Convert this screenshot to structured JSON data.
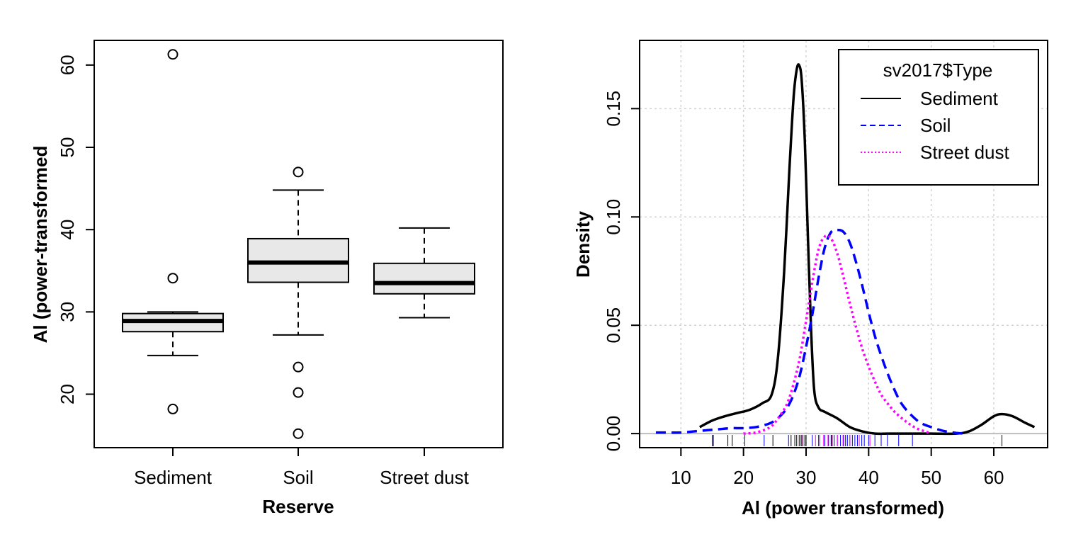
{
  "chart_data": [
    {
      "type": "boxplot",
      "xlabel": "Reserve",
      "ylabel": "Al (power-transformed",
      "ylim": [
        13.5,
        63
      ],
      "yticks": [
        20,
        30,
        40,
        50,
        60
      ],
      "categories": [
        "Sediment",
        "Soil",
        "Street dust"
      ],
      "boxes": [
        {
          "name": "Sediment",
          "whisker_low": 24.7,
          "q1": 27.6,
          "median": 28.9,
          "q3": 29.8,
          "whisker_high": 30.0,
          "outliers": [
            61.3,
            34.1,
            18.2
          ]
        },
        {
          "name": "Soil",
          "whisker_low": 27.2,
          "q1": 33.6,
          "median": 36.0,
          "q3": 38.9,
          "whisker_high": 44.8,
          "outliers": [
            47.0,
            23.3,
            20.2,
            15.2
          ]
        },
        {
          "name": "Street dust",
          "whisker_low": 29.3,
          "q1": 32.2,
          "median": 33.5,
          "q3": 35.9,
          "whisker_high": 40.2,
          "outliers": []
        }
      ],
      "box_fill": "#e8e8e8"
    },
    {
      "type": "line",
      "xlabel": "Al (power transformed)",
      "ylabel": "Density",
      "xlim": [
        3.4,
        68.6
      ],
      "ylim": [
        -0.0065,
        0.1815
      ],
      "xticks": [
        10,
        20,
        30,
        40,
        50,
        60
      ],
      "yticks": [
        "0.00",
        "0.05",
        "0.10",
        "0.15"
      ],
      "grid": true,
      "legend": {
        "title": "sv2017$Type",
        "position": "top-right"
      },
      "series": [
        {
          "name": "Sediment",
          "color": "#000000",
          "dash": "solid",
          "x": [
            13,
            15,
            17,
            19,
            21,
            23,
            24.5,
            25.5,
            26.5,
            27.3,
            28,
            28.5,
            28.9,
            29.3,
            29.8,
            30.3,
            30.8,
            31.3,
            32,
            33,
            35,
            37,
            39,
            41,
            43,
            45,
            50,
            54,
            56,
            58,
            60,
            61.3,
            63,
            65,
            66.5
          ],
          "y": [
            0.003,
            0.006,
            0.008,
            0.0095,
            0.011,
            0.014,
            0.018,
            0.035,
            0.075,
            0.12,
            0.155,
            0.168,
            0.17,
            0.163,
            0.135,
            0.09,
            0.048,
            0.02,
            0.012,
            0.01,
            0.007,
            0.003,
            0.001,
            0.0,
            0.0,
            0.0,
            0.0,
            0.0,
            0.001,
            0.004,
            0.008,
            0.009,
            0.008,
            0.005,
            0.003
          ]
        },
        {
          "name": "Soil",
          "color": "#0000ff",
          "dash": "dashed",
          "x": [
            6,
            10,
            12,
            14,
            16,
            18,
            20,
            22,
            24,
            25,
            26,
            27,
            28,
            29,
            30,
            31,
            32,
            33,
            34,
            35,
            36,
            37,
            38,
            39,
            40,
            41,
            42,
            43,
            44,
            45,
            46,
            47,
            48,
            49,
            50,
            51,
            52,
            53,
            54,
            55.5
          ],
          "y": [
            0.0005,
            0.0005,
            0.001,
            0.0015,
            0.002,
            0.0025,
            0.0025,
            0.003,
            0.0045,
            0.006,
            0.0085,
            0.012,
            0.018,
            0.027,
            0.04,
            0.055,
            0.072,
            0.086,
            0.093,
            0.094,
            0.093,
            0.088,
            0.079,
            0.068,
            0.056,
            0.045,
            0.036,
            0.028,
            0.021,
            0.015,
            0.011,
            0.008,
            0.0055,
            0.004,
            0.003,
            0.002,
            0.0012,
            0.0007,
            0.0003,
            0.0
          ]
        },
        {
          "name": "Street dust",
          "color": "#ff00ff",
          "dash": "dotted",
          "x": [
            20,
            22,
            24,
            25,
            26,
            27,
            28,
            29,
            30,
            31,
            32,
            33,
            34,
            35,
            36,
            37,
            38,
            39,
            40,
            41,
            42,
            43,
            44,
            45,
            46,
            47,
            48,
            49,
            50
          ],
          "y": [
            0.0,
            0.0005,
            0.0025,
            0.005,
            0.009,
            0.014,
            0.023,
            0.035,
            0.052,
            0.07,
            0.085,
            0.091,
            0.09,
            0.083,
            0.072,
            0.06,
            0.049,
            0.039,
            0.031,
            0.024,
            0.018,
            0.014,
            0.0105,
            0.0078,
            0.0055,
            0.0035,
            0.002,
            0.001,
            0.0
          ]
        }
      ],
      "rug": [
        {
          "color": "#000000",
          "values": [
            15,
            17.5,
            18.2,
            24.7,
            27.6,
            28.2,
            28.5,
            28.9,
            29.2,
            29.5,
            29.8,
            30.0,
            34.1,
            61.3
          ]
        },
        {
          "color": "#0000ff",
          "values": [
            15.2,
            20.2,
            23.3,
            27.2,
            31,
            32,
            33,
            33.6,
            34,
            34.5,
            35,
            35.5,
            36,
            36.3,
            36.6,
            37,
            37.4,
            37.8,
            38.2,
            38.9,
            39.3,
            40,
            41,
            42,
            43,
            44.8,
            47
          ]
        },
        {
          "color": "#ff00ff",
          "values": [
            29.3,
            31.5,
            32.2,
            32.8,
            33.5,
            34.2,
            35,
            35.9,
            37,
            38.5,
            40.2
          ]
        }
      ]
    }
  ]
}
